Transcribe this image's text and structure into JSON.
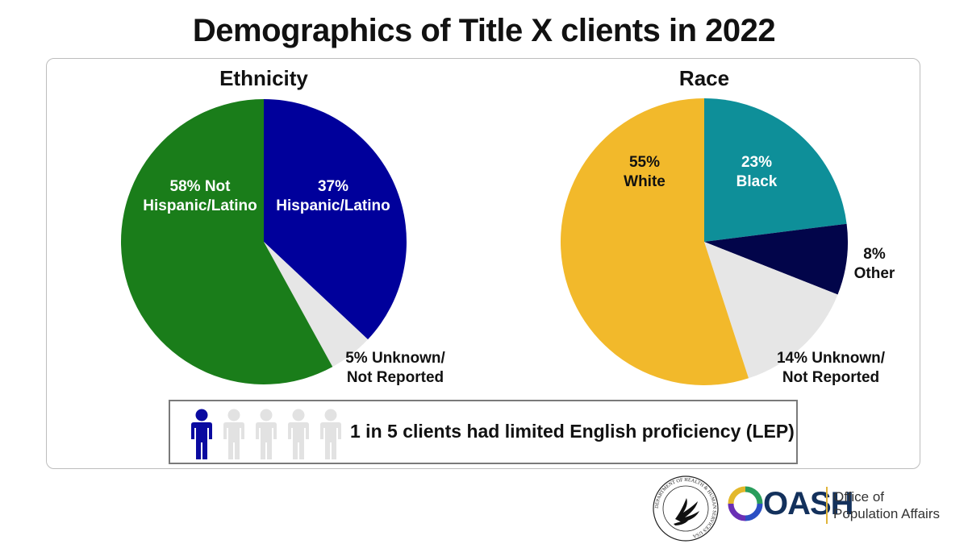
{
  "title": "Demographics of Title X clients in 2022",
  "chart_data": [
    {
      "type": "pie",
      "title": "Ethnicity",
      "slices": [
        {
          "label_lines": [
            "37%",
            "Hispanic/Latino"
          ],
          "value": 37,
          "color": "#00009b",
          "label_color": "#ffffff"
        },
        {
          "label_lines": [
            "5% Unknown/",
            "Not Reported"
          ],
          "value": 5,
          "color": "#e6e6e6",
          "label_color": "#111111"
        },
        {
          "label_lines": [
            "58% Not",
            "Hispanic/Latino"
          ],
          "value": 58,
          "color": "#1a7d1a",
          "label_color": "#ffffff"
        }
      ]
    },
    {
      "type": "pie",
      "title": "Race",
      "slices": [
        {
          "label_lines": [
            "23%",
            "Black"
          ],
          "value": 23,
          "color": "#0e8f99",
          "label_color": "#ffffff"
        },
        {
          "label_lines": [
            "8%",
            "Other"
          ],
          "value": 8,
          "color": "#02054a",
          "label_color": "#111111"
        },
        {
          "label_lines": [
            "14% Unknown/",
            "Not Reported"
          ],
          "value": 14,
          "color": "#e6e6e6",
          "label_color": "#111111"
        },
        {
          "label_lines": [
            "55%",
            "White"
          ],
          "value": 55,
          "color": "#f2b92b",
          "label_color": "#111111"
        }
      ]
    }
  ],
  "lep": {
    "text": "1 in 5 clients had limited English proficiency (LEP)",
    "highlighted": 1,
    "total": 5,
    "highlight_color": "#0a0aa0",
    "muted_color": "#e2e2e2"
  },
  "logos": {
    "hhs_seal": "DEPARTMENT OF HEALTH & HUMAN SERVICES USA",
    "oash": "OASH",
    "office_lines": [
      "Office of",
      "Population Affairs"
    ]
  }
}
